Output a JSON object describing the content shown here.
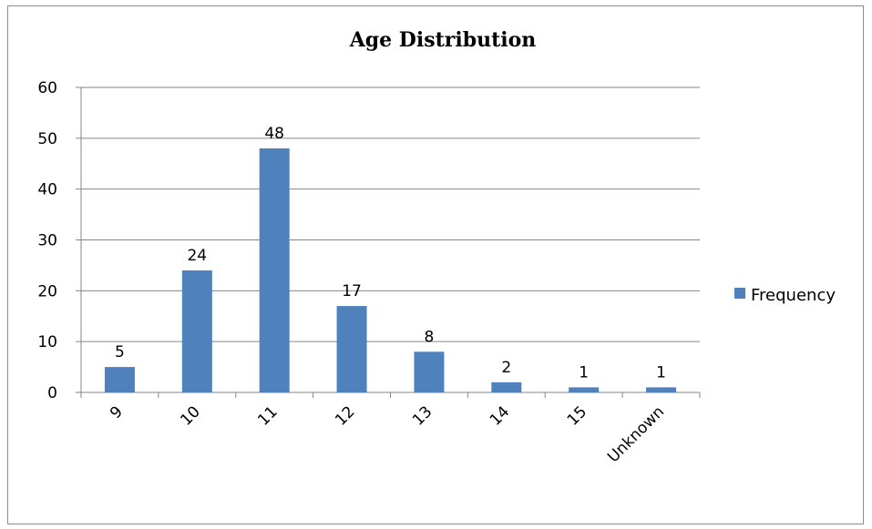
{
  "chart_data": {
    "type": "bar",
    "title": "Age Distribution",
    "categories": [
      "9",
      "10",
      "11",
      "12",
      "13",
      "14",
      "15",
      "Unknown"
    ],
    "series": [
      {
        "name": "Frequency",
        "values": [
          5,
          24,
          48,
          17,
          8,
          2,
          1,
          1
        ],
        "color": "#4f81bd"
      }
    ],
    "ylim": [
      0,
      60
    ],
    "yticks": [
      0,
      10,
      20,
      30,
      40,
      50,
      60
    ],
    "grid": true,
    "legend": "right",
    "data_labels": true
  }
}
